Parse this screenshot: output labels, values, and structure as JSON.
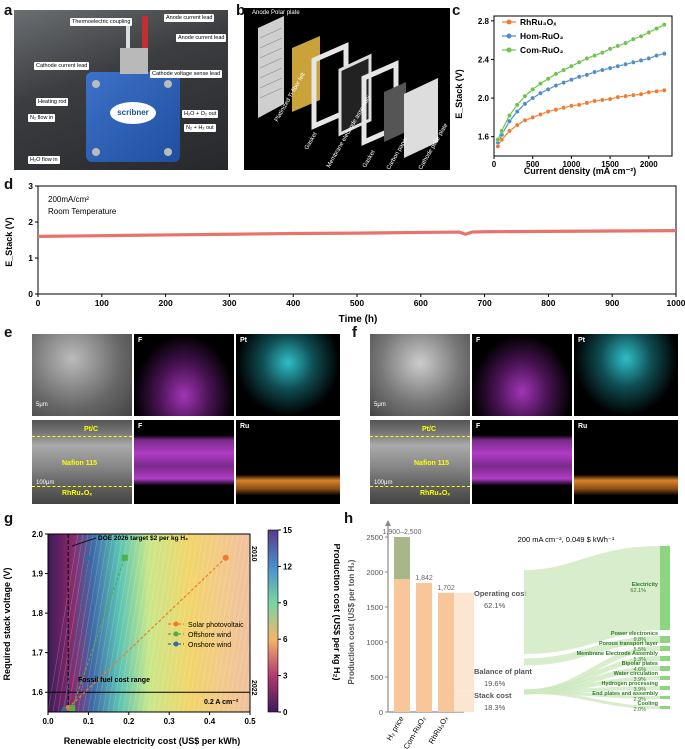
{
  "panels": {
    "a": "a",
    "b": "b",
    "c": "c",
    "d": "d",
    "e": "e",
    "f": "f",
    "g": "g",
    "h": "h"
  },
  "panel_a": {
    "labels": [
      "Thermoelectric coupling",
      "Anode current lead",
      "Anode current lead",
      "Cathode current lead",
      "Cathode voltage sense lead",
      "Heating rod",
      "N₂ flow in",
      "H₂O + O₂ out",
      "N₂ + H₂ out",
      "H₂O flow in"
    ],
    "brand": "scribner"
  },
  "panel_b": {
    "labels": [
      "Anode Polar plate",
      "Platinized Ti fiber felt",
      "Gasket",
      "Membrane electrode assembly",
      "Gasket",
      "Carbon paper",
      "Cathode polar plate"
    ]
  },
  "chart_data": [
    {
      "id": "c",
      "type": "line",
      "xlabel": "Current density  (mA cm⁻²)",
      "ylabel": "E_Stack (V)",
      "xlim": [
        0,
        2300
      ],
      "ylim": [
        1.4,
        2.85
      ],
      "xticks": [
        "0",
        "500",
        "1000",
        "1500",
        "2000"
      ],
      "yticks": [
        "1.6",
        "2.0",
        "2.4",
        "2.8"
      ],
      "series": [
        {
          "name": "RhRu₃Oₓ",
          "color": "#f07b2a",
          "x": [
            50,
            100,
            200,
            300,
            400,
            500,
            600,
            700,
            800,
            900,
            1000,
            1100,
            1200,
            1300,
            1400,
            1500,
            1600,
            1700,
            1800,
            1900,
            2000,
            2100,
            2200
          ],
          "y": [
            1.5,
            1.57,
            1.66,
            1.72,
            1.77,
            1.8,
            1.83,
            1.86,
            1.88,
            1.9,
            1.92,
            1.93,
            1.95,
            1.97,
            1.98,
            1.99,
            2.01,
            2.02,
            2.03,
            2.04,
            2.06,
            2.07,
            2.08
          ]
        },
        {
          "name": "Hom-RuO₂",
          "color": "#4e8ccc",
          "x": [
            50,
            100,
            200,
            300,
            400,
            500,
            600,
            700,
            800,
            900,
            1000,
            1100,
            1200,
            1300,
            1400,
            1500,
            1600,
            1700,
            1800,
            1900,
            2000,
            2100,
            2200
          ],
          "y": [
            1.54,
            1.62,
            1.76,
            1.86,
            1.94,
            2.0,
            2.05,
            2.09,
            2.13,
            2.16,
            2.19,
            2.22,
            2.24,
            2.27,
            2.29,
            2.31,
            2.33,
            2.35,
            2.37,
            2.39,
            2.41,
            2.44,
            2.46
          ]
        },
        {
          "name": "Com-RuO₂",
          "color": "#6cc24a",
          "x": [
            50,
            100,
            200,
            300,
            400,
            500,
            600,
            700,
            800,
            900,
            1000,
            1100,
            1200,
            1300,
            1400,
            1500,
            1600,
            1700,
            1800,
            1900,
            2000,
            2100,
            2200
          ],
          "y": [
            1.57,
            1.66,
            1.82,
            1.93,
            2.02,
            2.09,
            2.15,
            2.2,
            2.25,
            2.29,
            2.33,
            2.37,
            2.41,
            2.44,
            2.47,
            2.51,
            2.54,
            2.57,
            2.61,
            2.64,
            2.68,
            2.72,
            2.76
          ]
        }
      ]
    },
    {
      "id": "d",
      "type": "line",
      "xlabel": "Time (h)",
      "ylabel": "E_Stack (V)",
      "xlim": [
        0,
        1000
      ],
      "ylim": [
        0,
        3
      ],
      "xticks": [
        "0",
        "100",
        "200",
        "300",
        "400",
        "500",
        "600",
        "700",
        "800",
        "900",
        "1000"
      ],
      "yticks": [
        "0",
        "1",
        "2",
        "3"
      ],
      "annotations": [
        "200mA/cm²",
        "Room Temperature"
      ],
      "series": [
        {
          "name": "stack",
          "color": "#e8736d",
          "x": [
            0,
            100,
            200,
            300,
            400,
            500,
            600,
            660,
            670,
            680,
            700,
            800,
            900,
            1000
          ],
          "y": [
            1.6,
            1.62,
            1.64,
            1.66,
            1.68,
            1.69,
            1.71,
            1.72,
            1.66,
            1.72,
            1.73,
            1.74,
            1.75,
            1.76
          ]
        }
      ]
    },
    {
      "id": "g",
      "type": "heatmap",
      "xlabel": "Renewable electricity cost (US$ per kWh)",
      "ylabel": "Required stack voltage (V)",
      "colorbar_label": "Production cost (US$ per kg H₂)",
      "xlim": [
        0,
        0.5
      ],
      "ylim": [
        1.55,
        2.0
      ],
      "xticks": [
        "0.0",
        "0.1",
        "0.2",
        "0.3",
        "0.4",
        "0.5"
      ],
      "yticks": [
        "1.6",
        "1.7",
        "1.8",
        "1.9",
        "2.0"
      ],
      "colorbar_ticks": [
        "0",
        "3",
        "6",
        "9",
        "12",
        "15"
      ],
      "annotations": [
        "DOE 2026 target $2 per kg H₂",
        "Fossil fuel cost range",
        "0.2 A cm⁻²",
        "2010",
        "2022"
      ],
      "series": [
        {
          "name": "Solar photovoltaic",
          "color": "#f07b2a",
          "x": [
            0.05,
            0.44
          ],
          "y": [
            1.56,
            1.94
          ]
        },
        {
          "name": "Offshore wind",
          "color": "#4caf50",
          "x": [
            0.06,
            0.19
          ],
          "y": [
            1.56,
            1.94
          ]
        },
        {
          "name": "Onshore wind",
          "color": "#2e6da4",
          "x": [
            0.04,
            0.1
          ],
          "y": [
            1.56,
            1.94
          ]
        }
      ],
      "reference_lines": {
        "doe_x": 0.05,
        "fossil_max_x": 0.065,
        "h_line_y": 1.6
      }
    },
    {
      "id": "h",
      "type": "bar",
      "ylabel": "Production cost (US$ per ton H₂)",
      "ylim": [
        0,
        2600
      ],
      "yticks": [
        "0",
        "500",
        "1000",
        "1500",
        "2000",
        "2500"
      ],
      "categories": [
        "H₂ price",
        "Com-RuO₂",
        "RhRu₃Oₓ"
      ],
      "values": [
        2500,
        1842,
        1702
      ],
      "value_labels": [
        "1,900–2,500",
        "1,842",
        "1,702"
      ],
      "h2_price_low": 1900,
      "subtitle": "200 mA cm⁻², 0.049 $ kWh⁻¹",
      "sankey_left": [
        {
          "name": "Operating cost",
          "pct": "62.1%"
        },
        {
          "name": "Balance of plant",
          "pct": "19.6%"
        },
        {
          "name": "Stack cost",
          "pct": "18.3%"
        }
      ],
      "sankey_right": [
        {
          "name": "Electricity",
          "pct": "62.1%"
        },
        {
          "name": "Power electronics",
          "pct": "9.8%"
        },
        {
          "name": "Porous transport layer",
          "pct": "5.5%"
        },
        {
          "name": "Membrane Electrode Assembly",
          "pct": "5.3%"
        },
        {
          "name": "Bipolar plates",
          "pct": "4.6%"
        },
        {
          "name": "Water circulation",
          "pct": "3.9%"
        },
        {
          "name": "Hydrogen processing",
          "pct": "3.9%"
        },
        {
          "name": "End plates and assembly",
          "pct": "2.9%"
        },
        {
          "name": "Cooling",
          "pct": "2.0%"
        }
      ]
    }
  ],
  "panel_e": {
    "maps": [
      "F",
      "Pt",
      "F",
      "Ru"
    ],
    "labels": [
      "Pt/C",
      "Nafion 115",
      "RhRu₃Oₓ"
    ],
    "scale_top": "5μm",
    "scale_bottom": "100μm"
  },
  "panel_f": {
    "maps": [
      "F",
      "Pt",
      "F",
      "Ru"
    ],
    "labels": [
      "Pt/C",
      "Nafion 115",
      "RhRu₃Oₓ"
    ],
    "scale_top": "5μm",
    "scale_bottom": "100μm"
  },
  "colors": {
    "accent_orange": "#f07b2a",
    "accent_blue": "#4e8ccc",
    "accent_green": "#6cc24a",
    "stack_red": "#e8736d",
    "magenta": "#b03cc4",
    "cyan": "#2fbfc9",
    "ru_orange": "#d9822b"
  }
}
